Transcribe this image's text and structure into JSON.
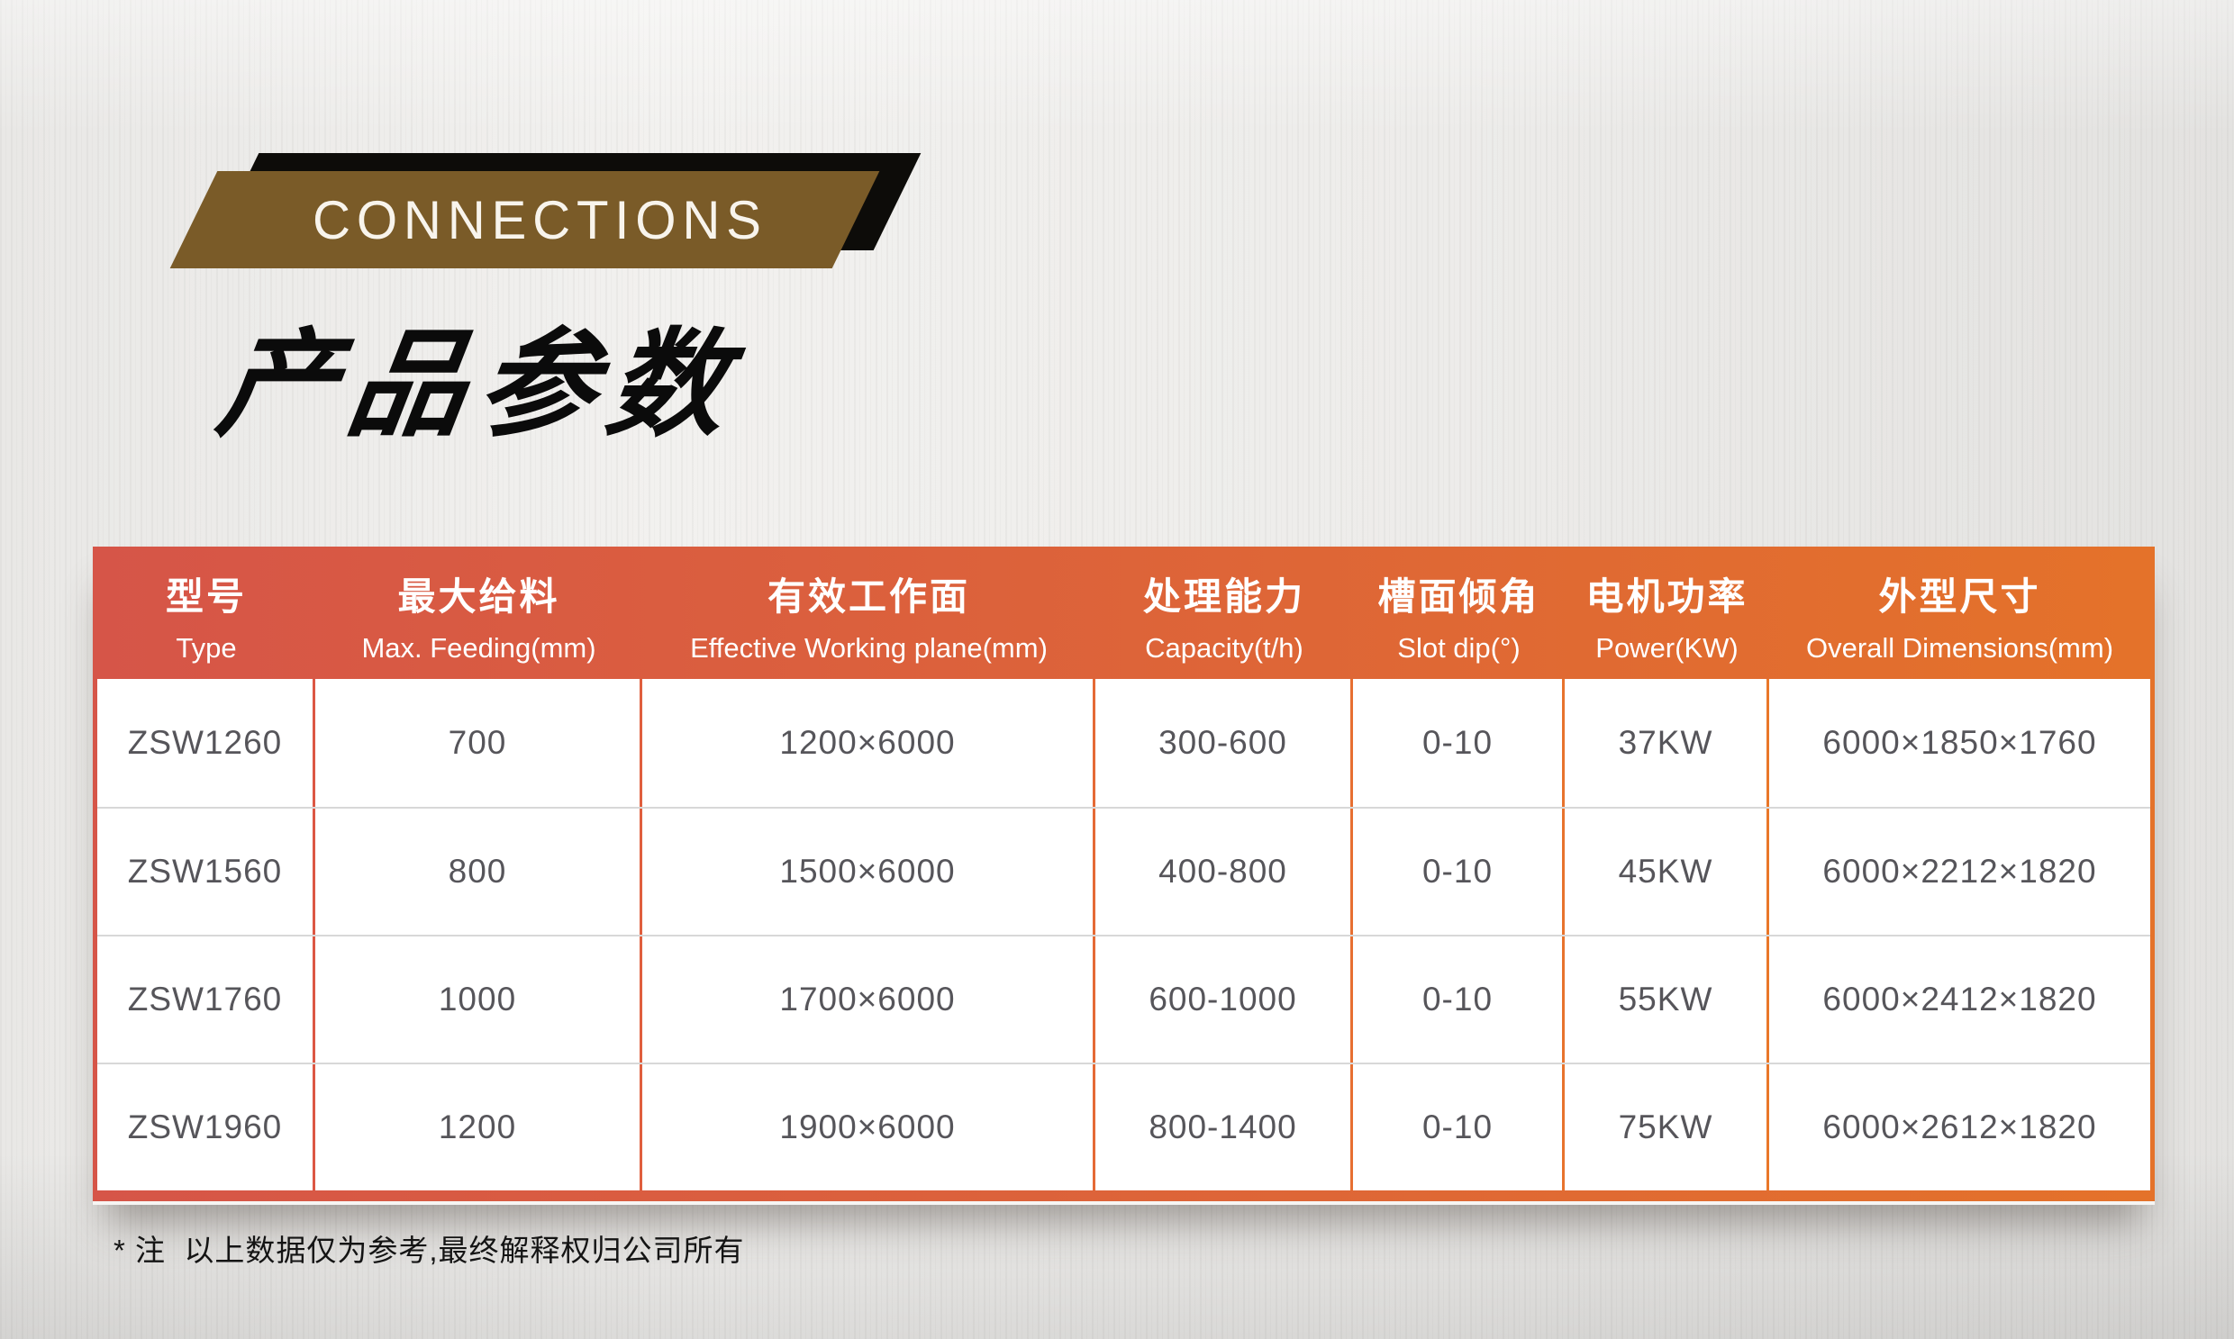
{
  "theme": {
    "accent_left": "#d65548",
    "accent_right": "#e4722a",
    "banner_brown": "#7a5b28",
    "banner_black": "#0d0c09",
    "header_text": "#ffffff",
    "cell_text": "#56555a",
    "row_divider": "#d8d8d8",
    "note_text": "#141414"
  },
  "banner": {
    "label": "CONNECTIONS"
  },
  "title": "产品参数",
  "table": {
    "columns": [
      {
        "zh": "型号",
        "en": "Type"
      },
      {
        "zh": "最大给料",
        "en": "Max. Feeding(mm)"
      },
      {
        "zh": "有效工作面",
        "en": "Effective Working plane(mm)"
      },
      {
        "zh": "处理能力",
        "en": "Capacity(t/h)"
      },
      {
        "zh": "槽面倾角",
        "en": "Slot dip(°)"
      },
      {
        "zh": "电机功率",
        "en": "Power(KW)"
      },
      {
        "zh": "外型尺寸",
        "en": "Overall Dimensions(mm)"
      }
    ],
    "rows": [
      [
        "ZSW1260",
        "700",
        "1200×6000",
        "300-600",
        "0-10",
        "37KW",
        "6000×1850×1760"
      ],
      [
        "ZSW1560",
        "800",
        "1500×6000",
        "400-800",
        "0-10",
        "45KW",
        "6000×2212×1820"
      ],
      [
        "ZSW1760",
        "1000",
        "1700×6000",
        "600-1000",
        "0-10",
        "55KW",
        "6000×2412×1820"
      ],
      [
        "ZSW1960",
        "1200",
        "1900×6000",
        "800-1400",
        "0-10",
        "75KW",
        "6000×2612×1820"
      ]
    ]
  },
  "footnote": "* 注  以上数据仅为参考,最终解释权归公司所有"
}
